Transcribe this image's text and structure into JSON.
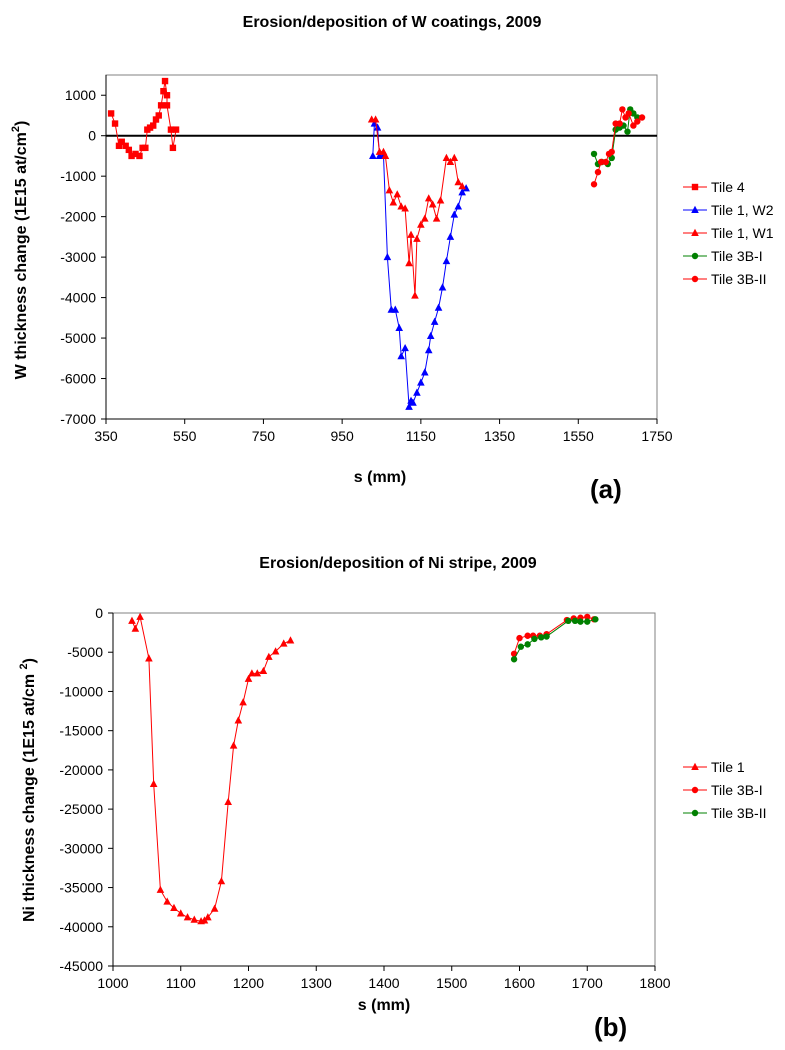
{
  "chart_data": [
    {
      "type": "line",
      "title": "Erosion/deposition of W coatings, 2009",
      "xlabel": "s (mm)",
      "ylabel": "W thickness change (1E15 at/cm",
      "ylabel_sup": "2",
      "ylabel_end": ")",
      "panel_label": "(a)",
      "xlim": [
        350,
        1750
      ],
      "ylim": [
        -7000,
        1500
      ],
      "xticks": [
        350,
        550,
        750,
        950,
        1150,
        1350,
        1550,
        1750
      ],
      "yticks": [
        -7000,
        -6000,
        -5000,
        -4000,
        -3000,
        -2000,
        -1000,
        0,
        1000
      ],
      "zero_line": true,
      "grid": false,
      "legend_position": "right",
      "series": [
        {
          "name": "Tile 4",
          "color": "#ff0000",
          "marker": "square",
          "points": [
            [
              363,
              550
            ],
            [
              373,
              300
            ],
            [
              383,
              -250
            ],
            [
              390,
              -150
            ],
            [
              400,
              -250
            ],
            [
              408,
              -350
            ],
            [
              415,
              -500
            ],
            [
              425,
              -450
            ],
            [
              435,
              -500
            ],
            [
              443,
              -300
            ],
            [
              450,
              -300
            ],
            [
              455,
              150
            ],
            [
              462,
              200
            ],
            [
              470,
              250
            ],
            [
              477,
              400
            ],
            [
              484,
              500
            ],
            [
              490,
              750
            ],
            [
              496,
              1100
            ],
            [
              500,
              1350
            ],
            [
              505,
              1000
            ],
            [
              505,
              750
            ],
            [
              515,
              150
            ],
            [
              520,
              -300
            ],
            [
              528,
              150
            ]
          ]
        },
        {
          "name": "Tile 1, W2",
          "color": "#0000ff",
          "marker": "triangle",
          "points": [
            [
              1028,
              -500
            ],
            [
              1032,
              300
            ],
            [
              1040,
              200
            ],
            [
              1045,
              -500
            ],
            [
              1055,
              -500
            ],
            [
              1065,
              -3000
            ],
            [
              1075,
              -4300
            ],
            [
              1085,
              -4300
            ],
            [
              1095,
              -4750
            ],
            [
              1100,
              -5450
            ],
            [
              1110,
              -5250
            ],
            [
              1120,
              -6700
            ],
            [
              1125,
              -6550
            ],
            [
              1130,
              -6600
            ],
            [
              1140,
              -6350
            ],
            [
              1150,
              -6100
            ],
            [
              1160,
              -5850
            ],
            [
              1170,
              -5300
            ],
            [
              1175,
              -4950
            ],
            [
              1185,
              -4600
            ],
            [
              1195,
              -4250
            ],
            [
              1205,
              -3750
            ],
            [
              1215,
              -3100
            ],
            [
              1225,
              -2500
            ],
            [
              1235,
              -1950
            ],
            [
              1245,
              -1750
            ],
            [
              1255,
              -1400
            ],
            [
              1265,
              -1300
            ]
          ]
        },
        {
          "name": "Tile 1, W1",
          "color": "#ff0000",
          "marker": "triangle",
          "points": [
            [
              1025,
              400
            ],
            [
              1035,
              400
            ],
            [
              1045,
              -400
            ],
            [
              1055,
              -400
            ],
            [
              1060,
              -500
            ],
            [
              1070,
              -1350
            ],
            [
              1080,
              -1650
            ],
            [
              1090,
              -1450
            ],
            [
              1100,
              -1750
            ],
            [
              1110,
              -1800
            ],
            [
              1120,
              -3150
            ],
            [
              1125,
              -2450
            ],
            [
              1135,
              -3950
            ],
            [
              1140,
              -2550
            ],
            [
              1150,
              -2200
            ],
            [
              1160,
              -2050
            ],
            [
              1170,
              -1550
            ],
            [
              1180,
              -1700
            ],
            [
              1190,
              -2050
            ],
            [
              1200,
              -1600
            ],
            [
              1215,
              -550
            ],
            [
              1225,
              -650
            ],
            [
              1235,
              -550
            ],
            [
              1245,
              -1150
            ],
            [
              1255,
              -1250
            ]
          ]
        },
        {
          "name": "Tile 3B-I",
          "color": "#008000",
          "marker": "circle",
          "points": [
            [
              1590,
              -450
            ],
            [
              1600,
              -700
            ],
            [
              1610,
              -650
            ],
            [
              1625,
              -700
            ],
            [
              1635,
              -550
            ],
            [
              1645,
              150
            ],
            [
              1655,
              200
            ],
            [
              1665,
              250
            ],
            [
              1675,
              100
            ],
            [
              1682,
              650
            ],
            [
              1690,
              550
            ],
            [
              1700,
              450
            ]
          ]
        },
        {
          "name": "Tile 3B-II",
          "color": "#ff0000",
          "marker": "circle",
          "points": [
            [
              1590,
              -1200
            ],
            [
              1600,
              -900
            ],
            [
              1608,
              -650
            ],
            [
              1620,
              -650
            ],
            [
              1628,
              -450
            ],
            [
              1635,
              -400
            ],
            [
              1645,
              300
            ],
            [
              1655,
              300
            ],
            [
              1662,
              650
            ],
            [
              1670,
              450
            ],
            [
              1678,
              550
            ],
            [
              1690,
              250
            ],
            [
              1700,
              350
            ],
            [
              1712,
              450
            ]
          ]
        }
      ]
    },
    {
      "type": "line",
      "title": "Erosion/deposition of Ni stripe, 2009",
      "xlabel": "s (mm)",
      "ylabel": "Ni thickness change (1E15 at/cm ",
      "ylabel_sup": "2",
      "ylabel_end": ")",
      "panel_label": "(b)",
      "xlim": [
        1000,
        1800
      ],
      "ylim": [
        -45000,
        0
      ],
      "xticks": [
        1000,
        1100,
        1200,
        1300,
        1400,
        1500,
        1600,
        1700,
        1800
      ],
      "yticks": [
        -45000,
        -40000,
        -35000,
        -30000,
        -25000,
        -20000,
        -15000,
        -10000,
        -5000,
        0
      ],
      "zero_line": false,
      "grid": false,
      "legend_position": "right",
      "series": [
        {
          "name": "Tile 1",
          "color": "#ff0000",
          "marker": "triangle",
          "points": [
            [
              1028,
              -1000
            ],
            [
              1033,
              -2000
            ],
            [
              1040,
              -500
            ],
            [
              1053,
              -5800
            ],
            [
              1060,
              -21800
            ],
            [
              1070,
              -35300
            ],
            [
              1080,
              -36800
            ],
            [
              1090,
              -37600
            ],
            [
              1100,
              -38300
            ],
            [
              1110,
              -38800
            ],
            [
              1120,
              -39100
            ],
            [
              1130,
              -39300
            ],
            [
              1135,
              -39200
            ],
            [
              1140,
              -38800
            ],
            [
              1150,
              -37700
            ],
            [
              1160,
              -34200
            ],
            [
              1170,
              -24100
            ],
            [
              1178,
              -16900
            ],
            [
              1185,
              -13700
            ],
            [
              1192,
              -11400
            ],
            [
              1200,
              -8400
            ],
            [
              1205,
              -7700
            ],
            [
              1213,
              -7700
            ],
            [
              1222,
              -7400
            ],
            [
              1230,
              -5600
            ],
            [
              1240,
              -4900
            ],
            [
              1252,
              -3900
            ],
            [
              1262,
              -3500
            ]
          ]
        },
        {
          "name": "Tile 3B-I",
          "color": "#ff0000",
          "marker": "circle",
          "points": [
            [
              1592,
              -5200
            ],
            [
              1600,
              -3200
            ],
            [
              1612,
              -2900
            ],
            [
              1620,
              -2900
            ],
            [
              1630,
              -2900
            ],
            [
              1640,
              -2700
            ],
            [
              1670,
              -900
            ],
            [
              1680,
              -700
            ],
            [
              1690,
              -600
            ],
            [
              1700,
              -500
            ],
            [
              1710,
              -800
            ]
          ]
        },
        {
          "name": "Tile 3B-II",
          "color": "#008000",
          "marker": "circle",
          "points": [
            [
              1592,
              -5900
            ],
            [
              1602,
              -4300
            ],
            [
              1612,
              -4000
            ],
            [
              1622,
              -3300
            ],
            [
              1632,
              -3100
            ],
            [
              1640,
              -3000
            ],
            [
              1672,
              -1000
            ],
            [
              1682,
              -1000
            ],
            [
              1690,
              -1100
            ],
            [
              1700,
              -1100
            ],
            [
              1712,
              -800
            ]
          ]
        }
      ]
    }
  ]
}
